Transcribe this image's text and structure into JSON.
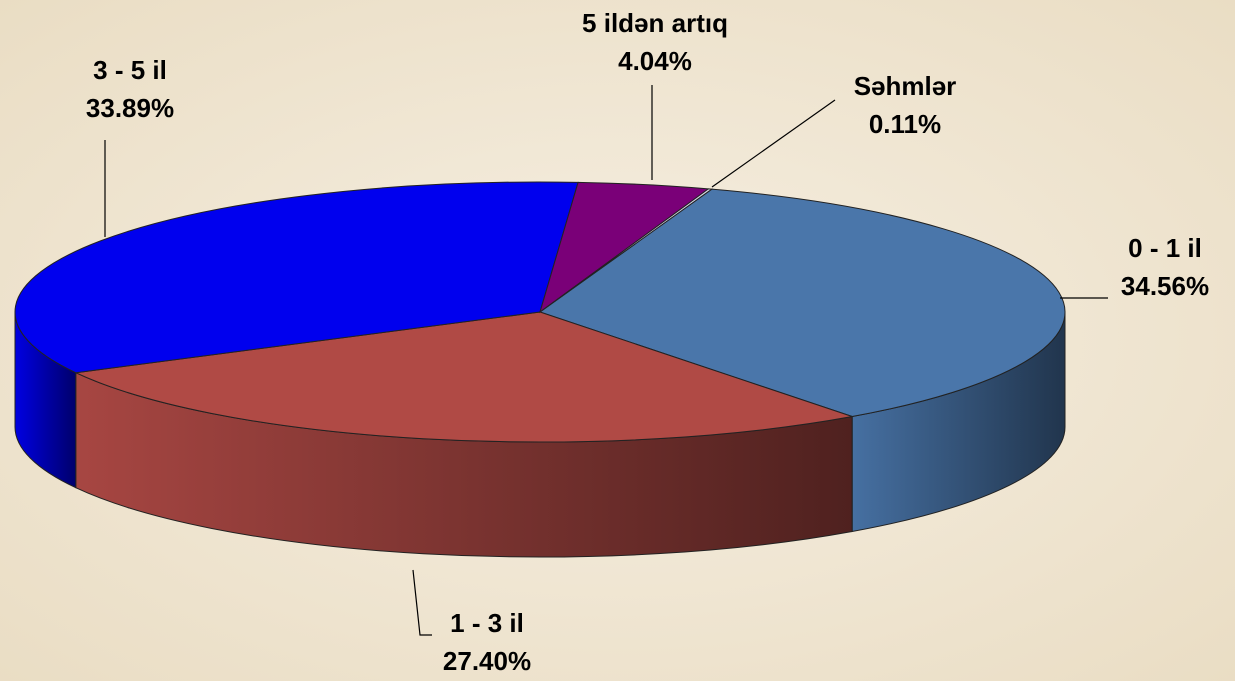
{
  "chart_data": {
    "type": "pie",
    "categories": [
      "0 - 1 il",
      "1 - 3 il",
      "3 - 5 il",
      "5 ildən artıq",
      "Səhmlər"
    ],
    "values": [
      34.56,
      27.4,
      33.89,
      4.04,
      0.11
    ],
    "value_labels": [
      "34.56%",
      "27.40%",
      "33.89%",
      "4.04%",
      "0.11%"
    ],
    "colors": [
      "#4a76aa",
      "#b04a45",
      "#0000ee",
      "#7a0078",
      "#d8d8e8"
    ]
  }
}
